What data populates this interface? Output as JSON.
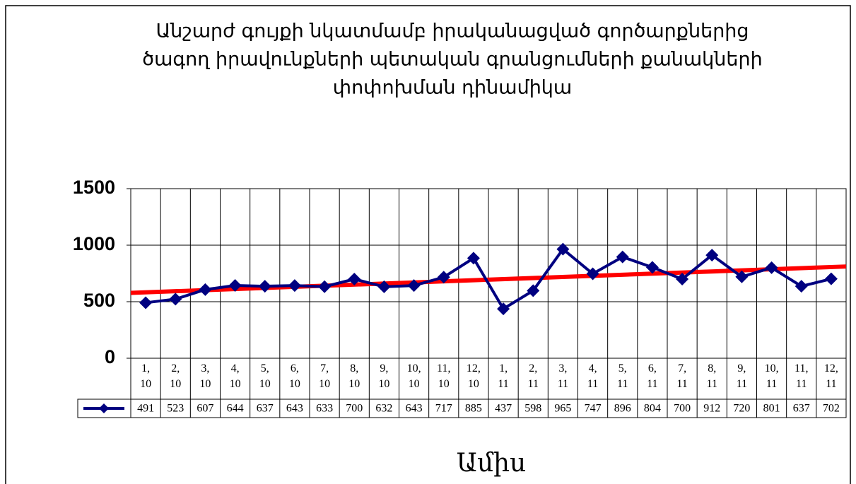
{
  "chart_data": {
    "type": "line",
    "title": [
      "Անշարժ գույքի նկատմամբ իրականացված գործարքներից",
      "ծագող  իրավունքների  պետական գրանցումների քանակների",
      "փոփոխման  դինամիկա"
    ],
    "x_label": "Ամիս",
    "categories": [
      "1, 10",
      "2, 10",
      "3, 10",
      "4, 10",
      "5, 10",
      "6, 10",
      "7, 10",
      "8, 10",
      "9, 10",
      "10, 10",
      "11, 10",
      "12, 10",
      "1, 11",
      "2, 11",
      "3, 11",
      "4, 11",
      "5, 11",
      "6, 11",
      "7, 11",
      "8, 11",
      "9, 11",
      "10, 11",
      "11, 11",
      "12, 11"
    ],
    "series": [
      {
        "color": "#000080",
        "values": [
          491,
          523,
          607,
          644,
          637,
          643,
          633,
          700,
          632,
          643,
          717,
          885,
          437,
          598,
          965,
          747,
          896,
          804,
          700,
          912,
          720,
          801,
          637,
          702
        ]
      }
    ],
    "trendline": {
      "type": "linear",
      "color": "#ff0000"
    },
    "ylim": [
      0,
      1500
    ],
    "yticks": [
      0,
      500,
      1000,
      1500
    ],
    "grid": true,
    "data_table": true
  }
}
